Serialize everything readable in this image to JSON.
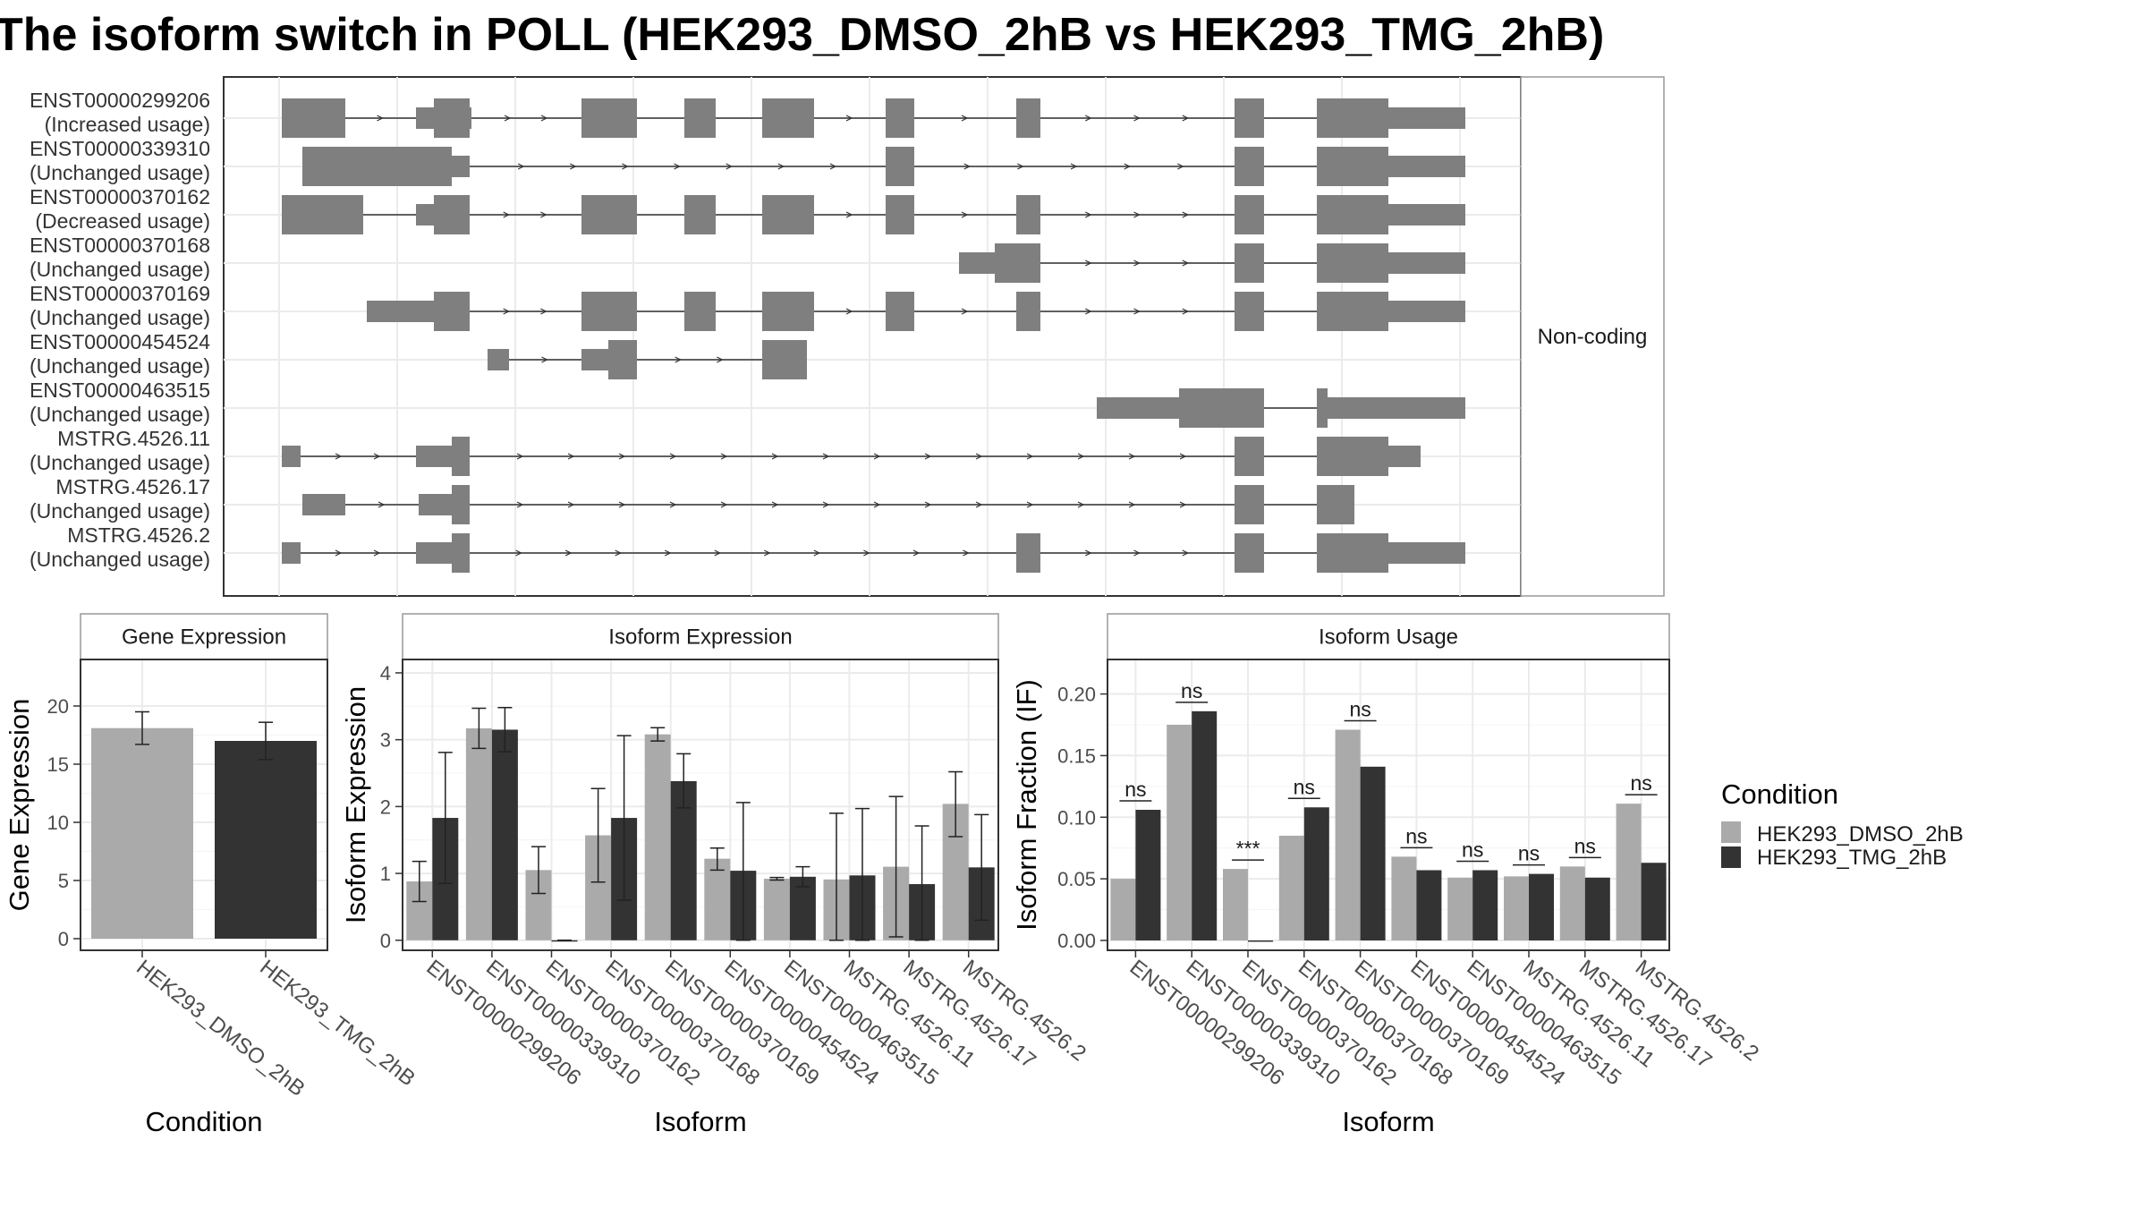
{
  "title": "The isoform switch in POLL (HEK293_DMSO_2hB vs HEK293_TMG_2hB)",
  "colors": {
    "dmso": "#aaaaaa",
    "tmg": "#333333",
    "exon": "#7f7f7f",
    "panel_border": "#333333",
    "strip_border": "#999999",
    "grid": "#ebebeb"
  },
  "conditions": [
    "HEK293_DMSO_2hB",
    "HEK293_TMG_2hB"
  ],
  "isoforms": [
    "ENST00000299206",
    "ENST00000339310",
    "ENST00000370162",
    "ENST00000370168",
    "ENST00000370169",
    "ENST00000454524",
    "ENST00000463515",
    "MSTRG.4526.11",
    "MSTRG.4526.17",
    "MSTRG.4526.2"
  ],
  "structure": {
    "strip_label": "Non-coding",
    "tracks": [
      {
        "id": "ENST00000299206",
        "usage": "(Increased usage)"
      },
      {
        "id": "ENST00000339310",
        "usage": "(Unchanged usage)"
      },
      {
        "id": "ENST00000370162",
        "usage": "(Decreased usage)"
      },
      {
        "id": "ENST00000370168",
        "usage": "(Unchanged usage)"
      },
      {
        "id": "ENST00000370169",
        "usage": "(Unchanged usage)"
      },
      {
        "id": "ENST00000454524",
        "usage": "(Unchanged usage)"
      },
      {
        "id": "ENST00000463515",
        "usage": "(Unchanged usage)"
      },
      {
        "id": "MSTRG.4526.11",
        "usage": "(Unchanged usage)"
      },
      {
        "id": "MSTRG.4526.17",
        "usage": "(Unchanged usage)"
      },
      {
        "id": "MSTRG.4526.2",
        "usage": "(Unchanged usage)"
      }
    ]
  },
  "legend": {
    "title": "Condition",
    "items": [
      "HEK293_DMSO_2hB",
      "HEK293_TMG_2hB"
    ]
  },
  "chart_data": [
    {
      "type": "bar",
      "title": "Gene Expression",
      "xlabel": "Condition",
      "ylabel": "Gene Expression",
      "categories": [
        "HEK293_DMSO_2hB",
        "HEK293_TMG_2hB"
      ],
      "values": [
        18.1,
        17.0
      ],
      "errors": [
        [
          16.7,
          19.5
        ],
        [
          15.4,
          18.6
        ]
      ],
      "yticks": [
        0,
        5,
        10,
        15,
        20
      ],
      "ylim": [
        -1,
        24
      ]
    },
    {
      "type": "bar",
      "title": "Isoform Expression",
      "xlabel": "Isoform",
      "ylabel": "Isoform Expression",
      "categories": [
        "ENST00000299206",
        "ENST00000339310",
        "ENST00000370162",
        "ENST00000370168",
        "ENST00000370169",
        "ENST00000454524",
        "ENST00000463515",
        "MSTRG.4526.11",
        "MSTRG.4526.17",
        "MSTRG.4526.2"
      ],
      "series": [
        {
          "name": "HEK293_DMSO_2hB",
          "values": [
            0.88,
            3.17,
            1.05,
            1.57,
            3.08,
            1.22,
            0.92,
            0.91,
            1.1,
            2.04
          ],
          "errors": [
            [
              0.58,
              1.18
            ],
            [
              2.87,
              3.47
            ],
            [
              0.7,
              1.4
            ],
            [
              0.87,
              2.27
            ],
            [
              2.98,
              3.18
            ],
            [
              1.05,
              1.38
            ],
            [
              0.9,
              0.94
            ],
            [
              0.0,
              1.9
            ],
            [
              0.05,
              2.15
            ],
            [
              1.55,
              2.52
            ]
          ]
        },
        {
          "name": "HEK293_TMG_2hB",
          "values": [
            1.83,
            3.15,
            0.0,
            1.83,
            2.38,
            1.04,
            0.95,
            0.97,
            0.84,
            1.09
          ],
          "errors": [
            [
              0.85,
              2.81
            ],
            [
              2.82,
              3.48
            ],
            [
              0.0,
              0.0
            ],
            [
              0.6,
              3.06
            ],
            [
              1.98,
              2.79
            ],
            [
              0.0,
              2.06
            ],
            [
              0.8,
              1.1
            ],
            [
              0.0,
              1.97
            ],
            [
              0.0,
              1.71
            ],
            [
              0.3,
              1.88
            ]
          ]
        }
      ],
      "yticks": [
        0,
        1,
        2,
        3,
        4
      ],
      "ylim": [
        -0.15,
        4.2
      ]
    },
    {
      "type": "bar",
      "title": "Isoform Usage",
      "xlabel": "Isoform",
      "ylabel": "Isoform Fraction (IF)",
      "categories": [
        "ENST00000299206",
        "ENST00000339310",
        "ENST00000370162",
        "ENST00000370168",
        "ENST00000370169",
        "ENST00000454524",
        "ENST00000463515",
        "MSTRG.4526.11",
        "MSTRG.4526.17",
        "MSTRG.4526.2"
      ],
      "series": [
        {
          "name": "HEK293_DMSO_2hB",
          "values": [
            0.05,
            0.175,
            0.058,
            0.085,
            0.171,
            0.068,
            0.051,
            0.052,
            0.06,
            0.111
          ]
        },
        {
          "name": "HEK293_TMG_2hB",
          "values": [
            0.106,
            0.186,
            0.0,
            0.108,
            0.141,
            0.057,
            0.057,
            0.054,
            0.051,
            0.063
          ]
        }
      ],
      "significance": [
        "ns",
        "ns",
        "***",
        "ns",
        "ns",
        "ns",
        "ns",
        "ns",
        "ns",
        "ns"
      ],
      "yticks": [
        0.0,
        0.05,
        0.1,
        0.15,
        0.2
      ],
      "ylim": [
        -0.008,
        0.228
      ]
    }
  ]
}
